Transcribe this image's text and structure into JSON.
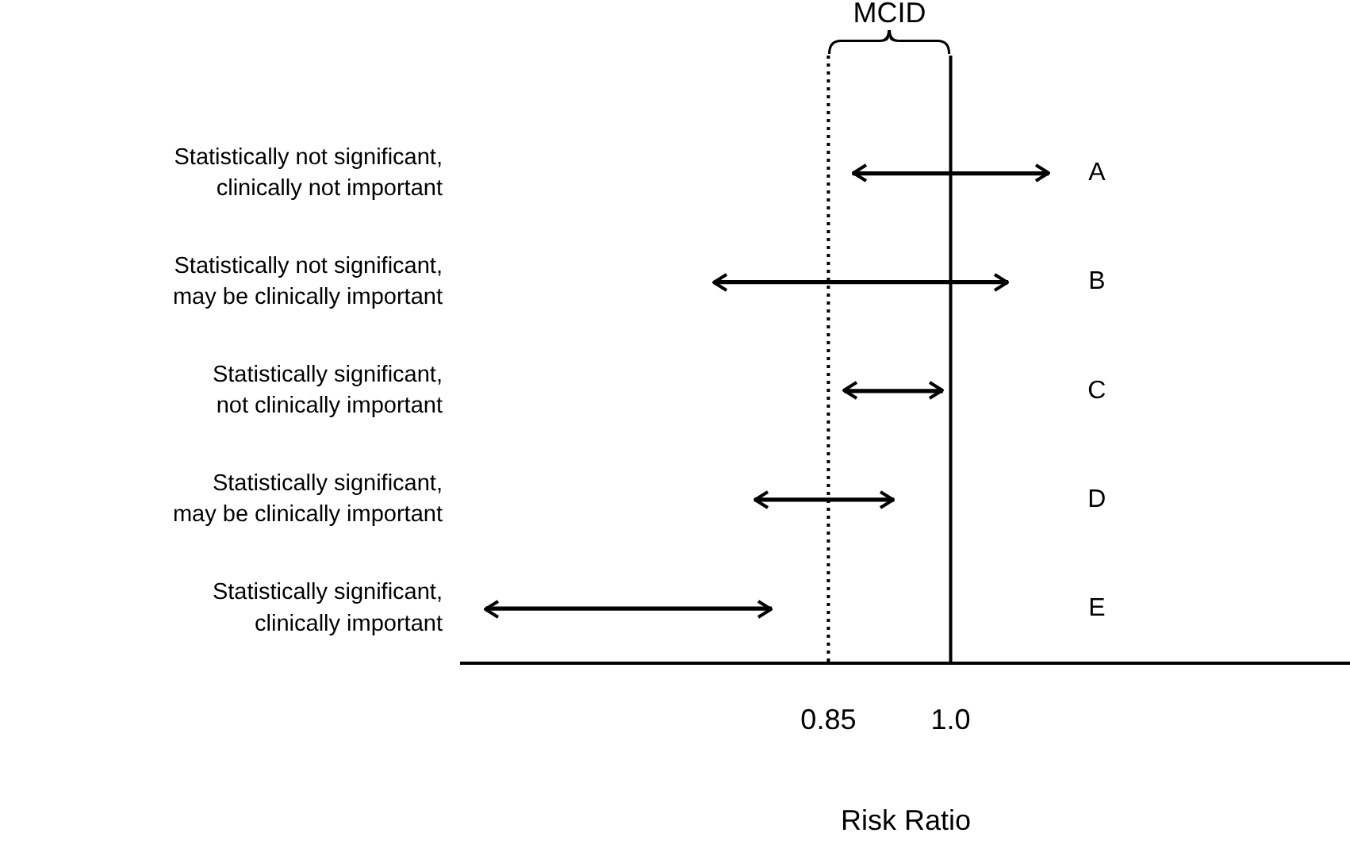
{
  "chart_data": {
    "type": "bar",
    "orientation": "horizontal",
    "xlabel": "Risk Ratio",
    "categories": [
      "Statistically not significant, clinically not important",
      "Statistically not significant, may be clinically important",
      "Statistically significant, not clinically important",
      "Statistically significant, may be clinically important",
      "Statistically significant, clinically important"
    ],
    "base": [
      0.88,
      0.71,
      0.87,
      0.76,
      0.43
    ],
    "values": [
      0.24,
      0.36,
      0.12,
      0.17,
      0.35
    ],
    "color": "#000000",
    "xlim": [
      0.4,
      1.49
    ],
    "xticks": [
      0.85,
      {
        "value": 1,
        "label": "1.0"
      }
    ],
    "ref_lines": [
      {
        "axis": "x",
        "value": 0.85,
        "line_style": "dotted"
      },
      {
        "axis": "x",
        "value": 1,
        "line_style": "solid"
      }
    ],
    "annotations": [
      "MCID",
      "A",
      "B",
      "C",
      "D",
      "E"
    ],
    "grid": false,
    "legend": false
  }
}
